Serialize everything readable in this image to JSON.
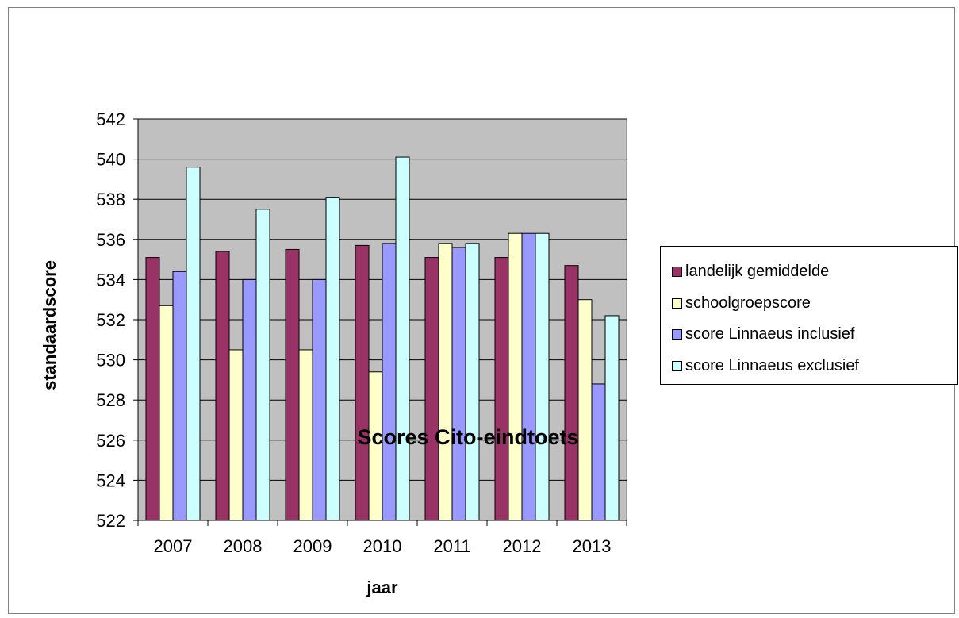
{
  "chart_data": {
    "type": "bar",
    "title": "Scores Cito-eindtoets",
    "xlabel": "jaar",
    "ylabel": "standaardscore",
    "categories": [
      "2007",
      "2008",
      "2009",
      "2010",
      "2011",
      "2012",
      "2013"
    ],
    "ylim": [
      522,
      542
    ],
    "yticks": [
      "542",
      "540",
      "538",
      "536",
      "534",
      "532",
      "530",
      "528",
      "526",
      "524",
      "522"
    ],
    "grid": true,
    "legend_position": "right",
    "plot_background": "#C0C0C0",
    "series": [
      {
        "name": "landelijk gemiddelde",
        "color": "#993366",
        "values": [
          535.1,
          535.4,
          535.5,
          535.7,
          535.1,
          535.1,
          534.7
        ]
      },
      {
        "name": "schoolgroepscore",
        "color": "#FFFFCC",
        "values": [
          532.7,
          530.5,
          530.5,
          529.4,
          535.8,
          536.3,
          533.0
        ]
      },
      {
        "name": "score Linnaeus inclusief",
        "color": "#9999FF",
        "values": [
          534.4,
          534.0,
          534.0,
          535.8,
          535.6,
          536.3,
          528.8
        ]
      },
      {
        "name": "score Linnaeus exclusief",
        "color": "#CCFFFF",
        "values": [
          539.6,
          537.5,
          538.1,
          540.1,
          535.8,
          536.3,
          532.2
        ]
      }
    ]
  }
}
